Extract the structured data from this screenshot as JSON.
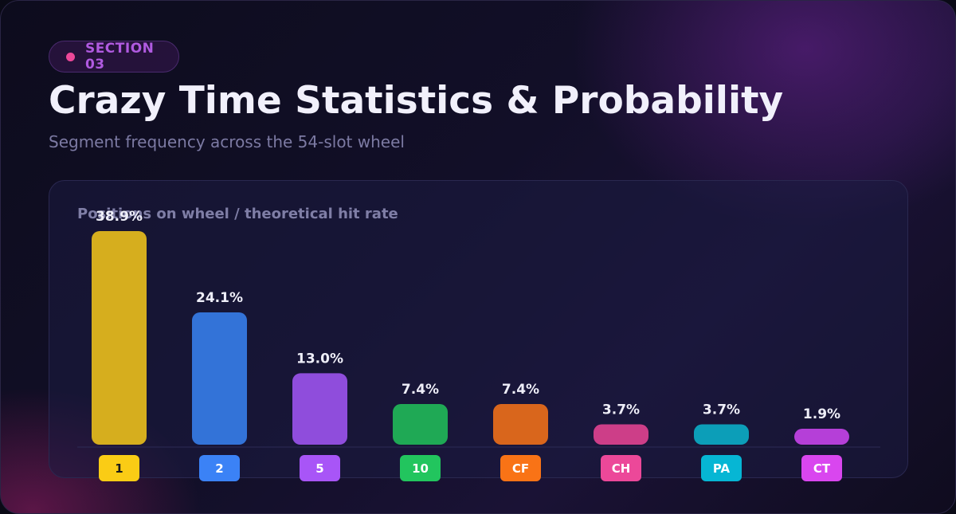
{
  "badge": {
    "label": "SECTION 03"
  },
  "header": {
    "title": "Crazy Time Statistics & Probability",
    "subtitle": "Segment frequency across the 54-slot wheel"
  },
  "panel": {
    "title": "Positions on wheel / theoretical hit rate"
  },
  "colors": {
    "accent": "#ec4899",
    "badge_text": "#b05ae0"
  },
  "chart_data": {
    "type": "bar",
    "categories": [
      "1",
      "2",
      "5",
      "10",
      "CF",
      "CH",
      "PA",
      "CT"
    ],
    "values": [
      38.9,
      24.1,
      13.0,
      7.4,
      7.4,
      3.7,
      3.7,
      1.9
    ],
    "value_labels": [
      "38.9%",
      "24.1%",
      "13.0%",
      "7.4%",
      "7.4%",
      "3.7%",
      "3.7%",
      "1.9%"
    ],
    "bar_colors": [
      "#d6ae1e",
      "#3373d8",
      "#8f4ddc",
      "#1fa955",
      "#d9661c",
      "#cd3e88",
      "#0c9eb8",
      "#b53fd8"
    ],
    "chip_colors": [
      "#facc15",
      "#3b82f6",
      "#a855f7",
      "#22c55e",
      "#f97316",
      "#ec4899",
      "#06b6d4",
      "#d946ef"
    ],
    "chip_text_colors": [
      "#1a1a1a",
      "#ffffff",
      "#ffffff",
      "#ffffff",
      "#ffffff",
      "#ffffff",
      "#ffffff",
      "#ffffff"
    ],
    "ylim": [
      0,
      38.9
    ],
    "grid": false,
    "legend": "none"
  }
}
